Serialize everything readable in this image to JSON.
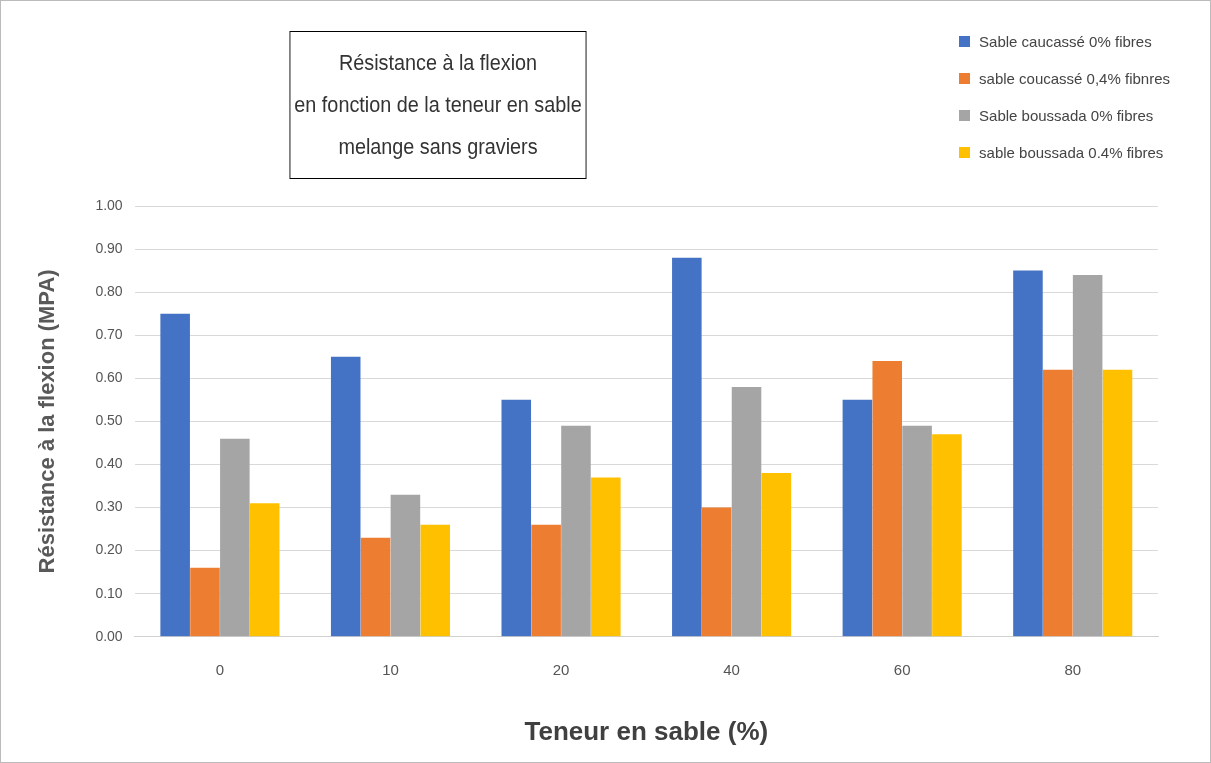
{
  "chart_data": {
    "type": "bar",
    "title": "Résistance à la  flexion\nen fonction de la teneur en sable\nmelange sans graviers",
    "xlabel": "Teneur en sable (%)",
    "ylabel": "Résistance à la flexion (MPA)",
    "categories": [
      "0",
      "10",
      "20",
      "40",
      "60",
      "80"
    ],
    "series": [
      {
        "name": "Sable caucassé 0% fibres",
        "color": "#4472c4",
        "values": [
          0.75,
          0.65,
          0.55,
          0.88,
          0.55,
          0.85
        ]
      },
      {
        "name": "sable coucassé 0,4% fibnres",
        "color": "#ed7d31",
        "values": [
          0.16,
          0.23,
          0.26,
          0.3,
          0.64,
          0.62
        ]
      },
      {
        "name": "Sable boussada 0% fibres",
        "color": "#a5a5a5",
        "values": [
          0.46,
          0.33,
          0.49,
          0.58,
          0.49,
          0.84
        ]
      },
      {
        "name": "sable boussada 0.4% fibres",
        "color": "#ffc000",
        "values": [
          0.31,
          0.26,
          0.37,
          0.38,
          0.47,
          0.62
        ]
      }
    ],
    "ylim": [
      0,
      1
    ],
    "yticks": [
      {
        "value": 0,
        "label": "0.00"
      },
      {
        "value": 0.1,
        "label": "0.10"
      },
      {
        "value": 0.2,
        "label": "0.20"
      },
      {
        "value": 0.3,
        "label": "0.30"
      },
      {
        "value": 0.4,
        "label": "0.40"
      },
      {
        "value": 0.5,
        "label": "0.50"
      },
      {
        "value": 0.6,
        "label": "0.60"
      },
      {
        "value": 0.7,
        "label": "0.70"
      },
      {
        "value": 0.8,
        "label": "0.80"
      },
      {
        "value": 0.9,
        "label": "0.90"
      },
      {
        "value": 1,
        "label": "1.00"
      }
    ],
    "grid": "y",
    "legend": "top right"
  }
}
